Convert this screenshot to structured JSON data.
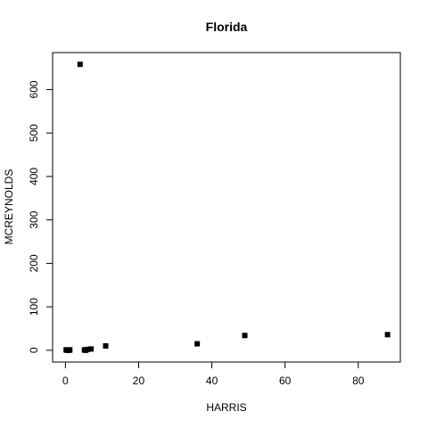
{
  "chart_data": {
    "type": "scatter",
    "title": "Florida",
    "xlabel": "HARRIS",
    "ylabel": "MCREYNOLDS",
    "xlim": [
      -3.5,
      91.5
    ],
    "ylim": [
      -27,
      685
    ],
    "xticks": [
      0,
      20,
      40,
      60,
      80
    ],
    "yticks": [
      0,
      100,
      200,
      300,
      400,
      500,
      600
    ],
    "grid": false,
    "legend": "none",
    "points": [
      {
        "x": 0.2,
        "y": 1
      },
      {
        "x": 0.5,
        "y": 0
      },
      {
        "x": 1.0,
        "y": 0
      },
      {
        "x": 1.2,
        "y": 1
      },
      {
        "x": 4.0,
        "y": 658
      },
      {
        "x": 5.2,
        "y": 1
      },
      {
        "x": 5.5,
        "y": 0
      },
      {
        "x": 6.0,
        "y": 2
      },
      {
        "x": 7.0,
        "y": 3
      },
      {
        "x": 11.0,
        "y": 10
      },
      {
        "x": 36.0,
        "y": 15
      },
      {
        "x": 49.0,
        "y": 34
      },
      {
        "x": 88.0,
        "y": 36
      }
    ]
  }
}
